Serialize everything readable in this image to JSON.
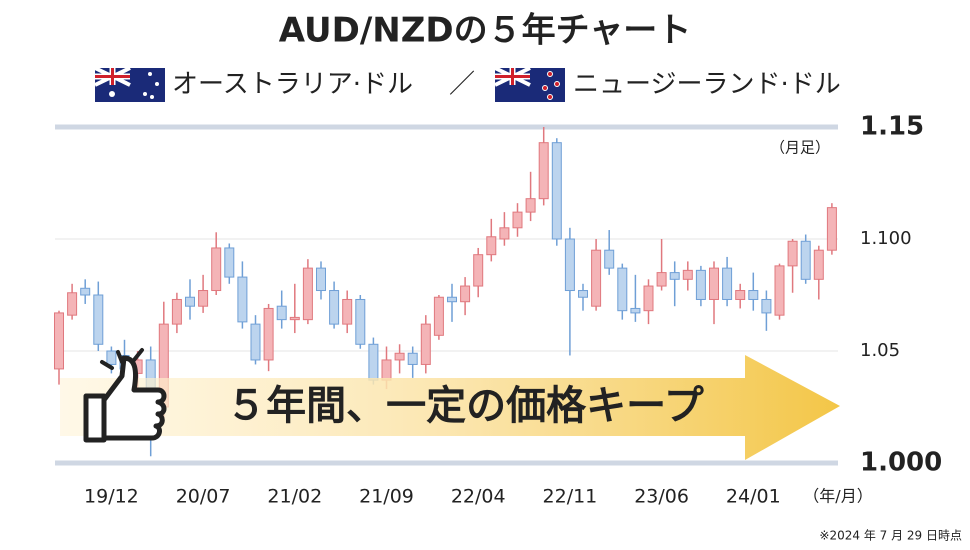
{
  "chart_data": {
    "type": "candlestick",
    "title": "AUD/NZDの５年チャート",
    "subtitle_left": "オーストラリア·ドル",
    "subtitle_sep": "／",
    "subtitle_right": "ニュージーランド·ドル",
    "period_label": "（月足）",
    "x_axis_label": "（年/月）",
    "note": "※2024 年 7 月 29 日時点",
    "banner": "５年間、一定の価格キープ",
    "categories": [
      null,
      null,
      null,
      null,
      "19/12",
      null,
      null,
      null,
      null,
      null,
      null,
      "20/07",
      null,
      null,
      null,
      null,
      null,
      null,
      "21/02",
      null,
      null,
      null,
      null,
      null,
      null,
      "21/09",
      null,
      null,
      null,
      null,
      null,
      null,
      "22/04",
      null,
      null,
      null,
      null,
      null,
      null,
      "22/11",
      null,
      null,
      null,
      null,
      null,
      null,
      "23/06",
      null,
      null,
      null,
      null,
      null,
      null,
      "24/01",
      null,
      null,
      null,
      null,
      null,
      null
    ],
    "open": [
      1.042,
      1.066,
      1.078,
      1.075,
      1.05,
      1.048,
      1.04,
      1.046,
      1.025,
      1.062,
      1.074,
      1.07,
      1.077,
      1.096,
      1.083,
      1.062,
      1.046,
      1.07,
      1.064,
      1.064,
      1.087,
      1.077,
      1.062,
      1.073,
      1.053,
      1.037,
      1.046,
      1.049,
      1.044,
      1.057,
      1.074,
      1.072,
      1.079,
      1.093,
      1.1,
      1.105,
      1.112,
      1.118,
      1.143,
      1.1,
      1.077,
      1.07,
      1.095,
      1.087,
      1.069,
      1.068,
      1.079,
      1.085,
      1.082,
      1.086,
      1.073,
      1.087,
      1.073,
      1.077,
      1.073,
      1.066,
      1.088,
      1.099,
      1.082,
      1.095
    ],
    "high": [
      1.068,
      1.08,
      1.082,
      1.081,
      1.052,
      1.055,
      1.05,
      1.052,
      1.072,
      1.076,
      1.082,
      1.084,
      1.103,
      1.098,
      1.09,
      1.066,
      1.071,
      1.077,
      1.08,
      1.091,
      1.09,
      1.081,
      1.077,
      1.075,
      1.056,
      1.052,
      1.053,
      1.052,
      1.066,
      1.075,
      1.08,
      1.083,
      1.096,
      1.109,
      1.112,
      1.116,
      1.13,
      1.15,
      1.145,
      1.105,
      1.08,
      1.1,
      1.104,
      1.089,
      1.084,
      1.082,
      1.1,
      1.09,
      1.09,
      1.088,
      1.09,
      1.092,
      1.08,
      1.085,
      1.077,
      1.089,
      1.1,
      1.102,
      1.097,
      1.116
    ],
    "low": [
      1.035,
      1.064,
      1.071,
      1.05,
      1.04,
      1.037,
      1.03,
      1.003,
      1.02,
      1.058,
      1.064,
      1.067,
      1.075,
      1.08,
      1.06,
      1.044,
      1.041,
      1.06,
      1.058,
      1.062,
      1.073,
      1.06,
      1.058,
      1.051,
      1.035,
      1.033,
      1.04,
      1.038,
      1.04,
      1.055,
      1.063,
      1.066,
      1.074,
      1.09,
      1.097,
      1.101,
      1.108,
      1.115,
      1.097,
      1.048,
      1.068,
      1.068,
      1.084,
      1.064,
      1.063,
      1.062,
      1.077,
      1.07,
      1.077,
      1.07,
      1.062,
      1.07,
      1.069,
      1.068,
      1.059,
      1.064,
      1.076,
      1.08,
      1.073,
      1.093
    ],
    "close": [
      1.067,
      1.076,
      1.075,
      1.053,
      1.044,
      1.042,
      1.046,
      1.025,
      1.062,
      1.073,
      1.07,
      1.077,
      1.096,
      1.083,
      1.063,
      1.046,
      1.069,
      1.064,
      1.065,
      1.087,
      1.077,
      1.062,
      1.073,
      1.053,
      1.037,
      1.046,
      1.049,
      1.044,
      1.062,
      1.074,
      1.072,
      1.079,
      1.093,
      1.101,
      1.105,
      1.112,
      1.118,
      1.143,
      1.1,
      1.077,
      1.074,
      1.095,
      1.087,
      1.068,
      1.067,
      1.079,
      1.085,
      1.082,
      1.086,
      1.073,
      1.087,
      1.073,
      1.077,
      1.073,
      1.067,
      1.088,
      1.099,
      1.082,
      1.095,
      1.114
    ],
    "up_color": "#f4b4b7",
    "up_edge": "#e0787e",
    "down_color": "#bcd4ee",
    "down_edge": "#6f9fd6",
    "ylim": [
      1.0,
      1.15
    ],
    "yticks": [
      {
        "value": 1.0,
        "label": "1.000"
      },
      1.05,
      {
        "value": 1.1,
        "label": "1.100"
      },
      1.15
    ],
    "grid": true
  }
}
